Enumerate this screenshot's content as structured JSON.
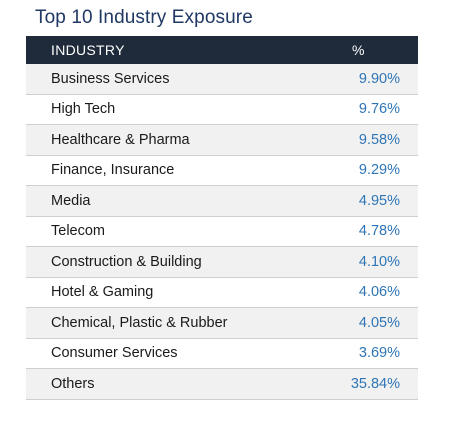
{
  "title": "Top 10 Industry Exposure",
  "table": {
    "headers": {
      "industry": "INDUSTRY",
      "percent": "%"
    },
    "rows": [
      {
        "industry": "Business Services",
        "percent": "9.90%"
      },
      {
        "industry": "High Tech",
        "percent": "9.76%"
      },
      {
        "industry": "Healthcare & Pharma",
        "percent": "9.58%"
      },
      {
        "industry": "Finance, Insurance",
        "percent": "9.29%"
      },
      {
        "industry": "Media",
        "percent": "4.95%"
      },
      {
        "industry": "Telecom",
        "percent": "4.78%"
      },
      {
        "industry": "Construction & Building",
        "percent": "4.10%"
      },
      {
        "industry": "Hotel & Gaming",
        "percent": "4.06%"
      },
      {
        "industry": "Chemical, Plastic & Rubber",
        "percent": "4.05%"
      },
      {
        "industry": "Consumer Services",
        "percent": "3.69%"
      },
      {
        "industry": "Others",
        "percent": "35.84%"
      }
    ]
  },
  "colors": {
    "title": "#1f3864",
    "header_bg": "#1f2a3a",
    "percent_text": "#2e75b6",
    "row_alt_bg": "#f1f1f1"
  }
}
